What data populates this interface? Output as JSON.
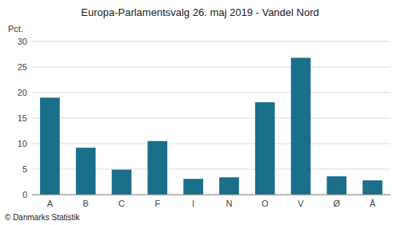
{
  "chart_data": {
    "type": "bar",
    "title": "Europa-Parlamentsvalg 26. maj 2019 - Vandel Nord",
    "categories": [
      "A",
      "B",
      "C",
      "F",
      "I",
      "N",
      "O",
      "V",
      "Ø",
      "Å"
    ],
    "values": [
      19.0,
      9.2,
      4.9,
      10.5,
      3.1,
      3.4,
      18.1,
      26.8,
      3.6,
      2.8
    ],
    "color": "#1a6f8a",
    "ylabel": "Pct.",
    "footer": "© Danmarks Statistik",
    "ylim": [
      0,
      30
    ],
    "yticks": [
      0,
      5,
      10,
      15,
      20,
      25,
      30
    ],
    "grid": true
  }
}
